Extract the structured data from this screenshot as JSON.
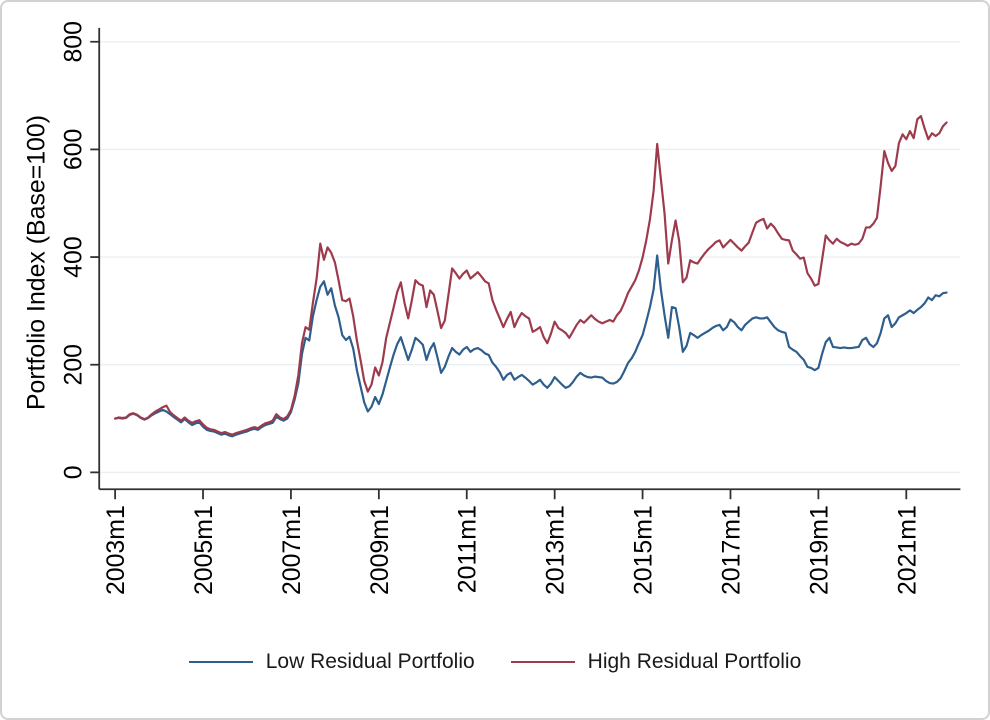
{
  "figure": {
    "background": "#ffffff",
    "border_color": "#d2d2d2",
    "axis_color": "#303030",
    "grid_color": "#eaf0f1"
  },
  "chart_data": {
    "type": "line",
    "title": "",
    "xlabel": "",
    "ylabel": "Portfolio Index (Base=100)",
    "ylim": [
      0,
      800
    ],
    "y_ticks": [
      0,
      200,
      400,
      600,
      800
    ],
    "x_ticks": [
      "2003m1",
      "2005m1",
      "2007m1",
      "2009m1",
      "2011m1",
      "2013m1",
      "2015m1",
      "2017m1",
      "2019m1",
      "2021m1"
    ],
    "x_range": [
      "2003m1",
      "2021m12"
    ],
    "frequency": "monthly",
    "grid": true,
    "legend_position": "bottom-center",
    "series": [
      {
        "name": "Low Residual Portfolio",
        "color": "#2e5e8d",
        "values": [
          100,
          101,
          100,
          101,
          107,
          109,
          106,
          101,
          98,
          101,
          106,
          110,
          113,
          116,
          113,
          108,
          103,
          98,
          93,
          99,
          93,
          88,
          91,
          93,
          85,
          79,
          77,
          76,
          73,
          70,
          72,
          69,
          67,
          70,
          72,
          74,
          76,
          79,
          81,
          79,
          84,
          88,
          90,
          92,
          103,
          99,
          96,
          100,
          112,
          135,
          165,
          220,
          250,
          245,
          290,
          320,
          345,
          355,
          330,
          342,
          310,
          288,
          255,
          246,
          252,
          230,
          190,
          160,
          130,
          113,
          122,
          140,
          127,
          145,
          170,
          195,
          218,
          238,
          251,
          230,
          209,
          228,
          250,
          244,
          237,
          209,
          229,
          240,
          214,
          185,
          196,
          215,
          231,
          224,
          219,
          228,
          233,
          224,
          229,
          231,
          227,
          221,
          218,
          204,
          196,
          186,
          172,
          181,
          185,
          172,
          177,
          181,
          176,
          170,
          163,
          167,
          172,
          163,
          157,
          165,
          177,
          170,
          163,
          157,
          160,
          168,
          178,
          185,
          180,
          177,
          176,
          178,
          177,
          176,
          170,
          166,
          165,
          168,
          175,
          188,
          203,
          212,
          224,
          240,
          255,
          280,
          307,
          340,
          403,
          340,
          292,
          250,
          307,
          305,
          270,
          224,
          235,
          259,
          255,
          250,
          255,
          259,
          263,
          268,
          272,
          274,
          264,
          270,
          284,
          279,
          270,
          264,
          274,
          280,
          286,
          288,
          286,
          286,
          288,
          279,
          270,
          264,
          261,
          259,
          233,
          228,
          224,
          216,
          209,
          196,
          194,
          190,
          194,
          220,
          242,
          250,
          233,
          232,
          231,
          232,
          231,
          231,
          232,
          233,
          246,
          250,
          238,
          233,
          240,
          259,
          286,
          292,
          270,
          277,
          288,
          292,
          296,
          301,
          296,
          302,
          307,
          314,
          325,
          320,
          329,
          327,
          333,
          334
        ]
      },
      {
        "name": "High Residual Portfolio",
        "color": "#9d3b4c",
        "values": [
          100,
          102,
          101,
          102,
          108,
          110,
          107,
          102,
          99,
          102,
          108,
          113,
          117,
          121,
          124,
          112,
          106,
          101,
          96,
          102,
          96,
          92,
          95,
          97,
          89,
          83,
          80,
          79,
          76,
          73,
          75,
          72,
          70,
          73,
          75,
          77,
          79,
          82,
          84,
          82,
          87,
          91,
          93,
          96,
          108,
          102,
          99,
          104,
          116,
          142,
          180,
          240,
          270,
          265,
          315,
          360,
          425,
          395,
          418,
          408,
          390,
          357,
          320,
          318,
          323,
          290,
          245,
          209,
          170,
          150,
          163,
          195,
          180,
          205,
          250,
          278,
          305,
          335,
          353,
          315,
          286,
          320,
          357,
          350,
          347,
          307,
          338,
          330,
          300,
          268,
          282,
          330,
          379,
          370,
          360,
          369,
          375,
          360,
          366,
          372,
          364,
          355,
          351,
          320,
          302,
          286,
          270,
          285,
          298,
          270,
          285,
          296,
          290,
          286,
          261,
          265,
          270,
          251,
          240,
          258,
          280,
          268,
          264,
          259,
          250,
          262,
          274,
          283,
          278,
          285,
          292,
          285,
          280,
          277,
          280,
          283,
          280,
          292,
          300,
          315,
          333,
          345,
          357,
          375,
          399,
          431,
          470,
          523,
          610,
          545,
          481,
          388,
          431,
          468,
          430,
          353,
          362,
          394,
          390,
          388,
          398,
          407,
          415,
          421,
          428,
          431,
          418,
          425,
          432,
          425,
          418,
          412,
          420,
          427,
          446,
          464,
          468,
          471,
          453,
          462,
          455,
          444,
          434,
          432,
          431,
          412,
          405,
          397,
          399,
          370,
          360,
          347,
          350,
          395,
          440,
          431,
          425,
          434,
          428,
          425,
          421,
          425,
          423,
          425,
          434,
          455,
          455,
          462,
          473,
          532,
          597,
          575,
          560,
          569,
          612,
          628,
          619,
          634,
          621,
          656,
          662,
          639,
          619,
          630,
          625,
          630,
          643,
          650
        ]
      }
    ]
  }
}
